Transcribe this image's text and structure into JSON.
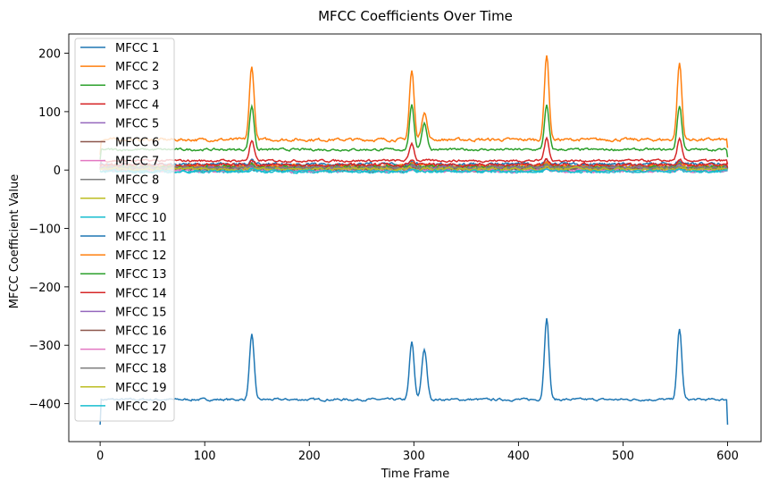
{
  "chart_data": {
    "type": "line",
    "title": "MFCC Coefficients Over Time",
    "xlabel": "Time Frame",
    "ylabel": "MFCC Coefficient Value",
    "xlim": [
      -30,
      632
    ],
    "ylim": [
      -465,
      233
    ],
    "xticks": [
      0,
      100,
      200,
      300,
      400,
      500,
      600
    ],
    "yticks": [
      -400,
      -300,
      -200,
      -100,
      0,
      100,
      200
    ],
    "grid": false,
    "legend_position": "upper-left",
    "spikes": [
      145,
      298,
      427,
      554
    ],
    "series": [
      {
        "name": "MFCC 1",
        "color": "#1f77b4",
        "base": -393,
        "spike": [
          111,
          98,
          140,
          121
        ],
        "noise": 3,
        "sec": [
          null,
          85,
          null,
          null
        ],
        "start": -436,
        "end": -436
      },
      {
        "name": "MFCC 2",
        "color": "#ff7f0e",
        "base": 52,
        "spike": [
          126,
          118,
          146,
          131
        ],
        "noise": 4,
        "sec": [
          null,
          48,
          null,
          null
        ],
        "start": 26,
        "end": 38
      },
      {
        "name": "MFCC 3",
        "color": "#2ca02c",
        "base": 35,
        "spike": [
          75,
          75,
          75,
          75
        ],
        "noise": 3,
        "sec": [
          null,
          45,
          null,
          null
        ],
        "start": 18,
        "end": 22
      },
      {
        "name": "MFCC 4",
        "color": "#d62728",
        "base": 16,
        "spike": [
          34,
          30,
          38,
          36
        ],
        "noise": 3,
        "sec": [
          null,
          null,
          null,
          null
        ],
        "start": 8,
        "end": 10
      },
      {
        "name": "MFCC 5",
        "color": "#9467bd",
        "base": 6,
        "spike": [
          6,
          6,
          8,
          6
        ],
        "noise": 4,
        "sec": [
          null,
          null,
          null,
          null
        ],
        "start": 2,
        "end": 3
      },
      {
        "name": "MFCC 6",
        "color": "#8c564b",
        "base": 4,
        "spike": [
          6,
          5,
          7,
          6
        ],
        "noise": 4,
        "sec": [
          null,
          null,
          null,
          null
        ],
        "start": 1,
        "end": 2
      },
      {
        "name": "MFCC 7",
        "color": "#e377c2",
        "base": 2,
        "spike": [
          4,
          4,
          5,
          4
        ],
        "noise": 4,
        "sec": [
          null,
          null,
          null,
          null
        ],
        "start": 0,
        "end": 1
      },
      {
        "name": "MFCC 8",
        "color": "#7f7f7f",
        "base": 1,
        "spike": [
          3,
          3,
          4,
          3
        ],
        "noise": 4,
        "sec": [
          null,
          null,
          null,
          null
        ],
        "start": 0,
        "end": 1
      },
      {
        "name": "MFCC 9",
        "color": "#bcbd22",
        "base": 3,
        "spike": [
          4,
          4,
          5,
          4
        ],
        "noise": 4,
        "sec": [
          null,
          null,
          null,
          null
        ],
        "start": 1,
        "end": 2
      },
      {
        "name": "MFCC 10",
        "color": "#17becf",
        "base": -3,
        "spike": [
          5,
          4,
          6,
          5
        ],
        "noise": 3,
        "sec": [
          null,
          null,
          null,
          null
        ],
        "start": -2,
        "end": -1
      },
      {
        "name": "MFCC 11",
        "color": "#1f77b4",
        "base": 10,
        "spike": [
          6,
          6,
          8,
          6
        ],
        "noise": 4,
        "sec": [
          null,
          null,
          null,
          null
        ],
        "start": 3,
        "end": 4
      },
      {
        "name": "MFCC 12",
        "color": "#ff7f0e",
        "base": 7,
        "spike": [
          5,
          5,
          6,
          5
        ],
        "noise": 4,
        "sec": [
          null,
          null,
          null,
          null
        ],
        "start": 2,
        "end": 3
      },
      {
        "name": "MFCC 13",
        "color": "#2ca02c",
        "base": 5,
        "spike": [
          5,
          5,
          6,
          5
        ],
        "noise": 4,
        "sec": [
          null,
          null,
          null,
          null
        ],
        "start": 1,
        "end": 2
      },
      {
        "name": "MFCC 14",
        "color": "#d62728",
        "base": 9,
        "spike": [
          8,
          8,
          10,
          9
        ],
        "noise": 4,
        "sec": [
          null,
          null,
          null,
          null
        ],
        "start": 3,
        "end": 4
      },
      {
        "name": "MFCC 15",
        "color": "#9467bd",
        "base": 3,
        "spike": [
          4,
          4,
          5,
          4
        ],
        "noise": 4,
        "sec": [
          null,
          null,
          null,
          null
        ],
        "start": 1,
        "end": 1
      },
      {
        "name": "MFCC 16",
        "color": "#8c564b",
        "base": 1,
        "spike": [
          3,
          3,
          4,
          3
        ],
        "noise": 5,
        "sec": [
          null,
          null,
          null,
          null
        ],
        "start": 0,
        "end": 1
      },
      {
        "name": "MFCC 17",
        "color": "#e377c2",
        "base": -1,
        "spike": [
          3,
          3,
          4,
          3
        ],
        "noise": 4,
        "sec": [
          null,
          null,
          null,
          null
        ],
        "start": 0,
        "end": 0
      },
      {
        "name": "MFCC 18",
        "color": "#7f7f7f",
        "base": 4,
        "spike": [
          4,
          4,
          5,
          4
        ],
        "noise": 4,
        "sec": [
          null,
          null,
          null,
          null
        ],
        "start": 1,
        "end": 2
      },
      {
        "name": "MFCC 19",
        "color": "#bcbd22",
        "base": 2,
        "spike": [
          3,
          3,
          4,
          3
        ],
        "noise": 4,
        "sec": [
          null,
          null,
          null,
          null
        ],
        "start": 0,
        "end": 1
      },
      {
        "name": "MFCC 20",
        "color": "#17becf",
        "base": -2,
        "spike": [
          3,
          3,
          4,
          3
        ],
        "noise": 3,
        "sec": [
          null,
          null,
          null,
          null
        ],
        "start": -1,
        "end": 0
      }
    ]
  }
}
